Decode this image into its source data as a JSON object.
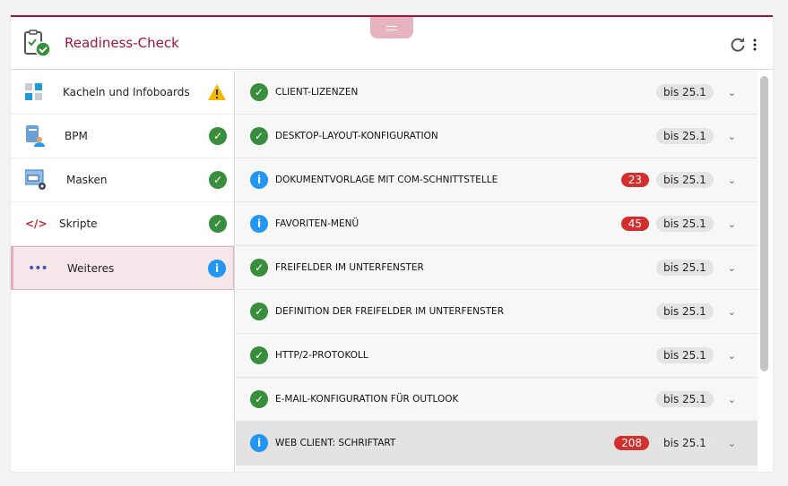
{
  "header": {
    "title": "Readiness-Check"
  },
  "sidebar": {
    "items": [
      {
        "label": "Kacheln und Infoboards",
        "icon": "tiles-icon",
        "status": "warning"
      },
      {
        "label": "BPM",
        "icon": "bpm-icon",
        "status": "ok"
      },
      {
        "label": "Masken",
        "icon": "mask-settings-icon",
        "status": "ok"
      },
      {
        "label": "Skripte",
        "icon": "code-icon",
        "status": "ok"
      },
      {
        "label": "Weiteres",
        "icon": "more-icon",
        "status": "info",
        "active": true
      }
    ]
  },
  "checks": [
    {
      "label": "CLIENT-LIZENZEN",
      "status": "ok",
      "count": null,
      "version": "bis 25.1"
    },
    {
      "label": "DESKTOP-LAYOUT-KONFIGURATION",
      "status": "ok",
      "count": null,
      "version": "bis 25.1"
    },
    {
      "label": "DOKUMENTVORLAGE MIT COM-SCHNITTSTELLE",
      "status": "info",
      "count": "23",
      "version": "bis 25.1"
    },
    {
      "label": "FAVORITEN-MENÜ",
      "status": "info",
      "count": "45",
      "version": "bis 25.1"
    },
    {
      "label": "FREIFELDER IM UNTERFENSTER",
      "status": "ok",
      "count": null,
      "version": "bis 25.1"
    },
    {
      "label": "DEFINITION DER FREIFELDER IM UNTERFENSTER",
      "status": "ok",
      "count": null,
      "version": "bis 25.1"
    },
    {
      "label": "HTTP/2-PROTOKOLL",
      "status": "ok",
      "count": null,
      "version": "bis 25.1"
    },
    {
      "label": "E-MAIL-KONFIGURATION FÜR OUTLOOK",
      "status": "ok",
      "count": null,
      "version": "bis 25.1"
    },
    {
      "label": "WEB CLIENT: SCHRIFTART",
      "status": "info",
      "count": "208",
      "version": "bis 25.1",
      "highlighted": true
    }
  ],
  "colors": {
    "brand": "#a3123b",
    "ok": "#388e3c",
    "info": "#2196f3",
    "warning": "#f5b800",
    "count": "#d32f2f"
  }
}
